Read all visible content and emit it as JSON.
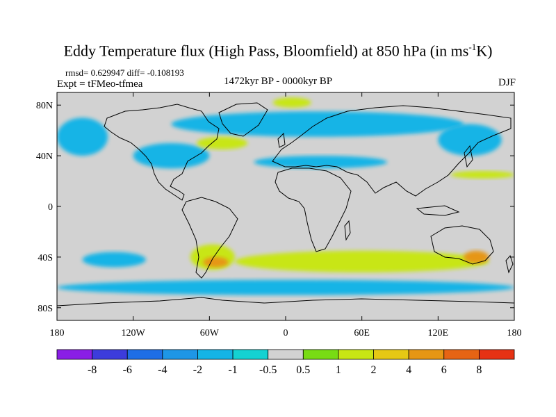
{
  "title": {
    "text": "Eddy Temperature flux (High Pass, Bloomfield) at 850 hPa (in ms",
    "sup": "-1",
    "tail": "K)"
  },
  "stats": "rmsd= 0.629947 diff= -0.108193",
  "experiment": "Expt = tFMeo-tfmea",
  "period": "1472kyr BP - 0000kyr BP",
  "season": "DJF",
  "axes": {
    "lon_ticks": [
      "180",
      "120W",
      "60W",
      "0",
      "60E",
      "120E",
      "180"
    ],
    "lat_ticks": [
      "80N",
      "40N",
      "0",
      "40S",
      "80S"
    ]
  },
  "colorbar": {
    "labels": [
      "-8",
      "-6",
      "-4",
      "-2",
      "-1",
      "-0.5",
      "0.5",
      "1",
      "2",
      "4",
      "6",
      "8"
    ],
    "colors": [
      "#8a1ee6",
      "#3c3cdc",
      "#1e6ee6",
      "#1e96e6",
      "#14b4e6",
      "#14d2d2",
      "#d2d2d2",
      "#78dc14",
      "#c8e614",
      "#e6c814",
      "#e69614",
      "#e66414",
      "#e63214"
    ]
  },
  "chart_data": {
    "type": "heatmap",
    "projection": "cylindrical-equidistant",
    "xlim": [
      -180,
      180
    ],
    "ylim": [
      -90,
      90
    ],
    "levels": [
      -8,
      -6,
      -4,
      -2,
      -1,
      -0.5,
      0.5,
      1,
      2,
      4,
      6,
      8
    ],
    "regions": [
      {
        "level": -1,
        "lon": [
          -160,
          -110
        ],
        "lat": [
          -36,
          -48
        ]
      },
      {
        "level": -1,
        "lon": [
          -180,
          180
        ],
        "lat": [
          -58,
          -70
        ]
      },
      {
        "level": -1,
        "lon": [
          -180,
          -140
        ],
        "lat": [
          40,
          70
        ]
      },
      {
        "level": -1,
        "lon": [
          -120,
          -60
        ],
        "lat": [
          30,
          50
        ]
      },
      {
        "level": -1,
        "lon": [
          -90,
          140
        ],
        "lat": [
          55,
          75
        ]
      },
      {
        "level": -1,
        "lon": [
          -25,
          80
        ],
        "lat": [
          30,
          40
        ]
      },
      {
        "level": -1,
        "lon": [
          120,
          170
        ],
        "lat": [
          40,
          65
        ]
      },
      {
        "level": 1,
        "lon": [
          -10,
          20
        ],
        "lat": [
          78,
          86
        ]
      },
      {
        "level": 1,
        "lon": [
          -70,
          -30
        ],
        "lat": [
          45,
          55
        ]
      },
      {
        "level": 1,
        "lon": [
          130,
          180
        ],
        "lat": [
          22,
          28
        ]
      },
      {
        "level": 1,
        "lon": [
          -75,
          -40
        ],
        "lat": [
          -30,
          -50
        ]
      },
      {
        "level": 1,
        "lon": [
          -40,
          160
        ],
        "lat": [
          -35,
          -52
        ]
      },
      {
        "level": 4,
        "lon": [
          -65,
          -45
        ],
        "lat": [
          -40,
          -48
        ]
      },
      {
        "level": 4,
        "lon": [
          140,
          160
        ],
        "lat": [
          -35,
          -45
        ]
      }
    ]
  }
}
